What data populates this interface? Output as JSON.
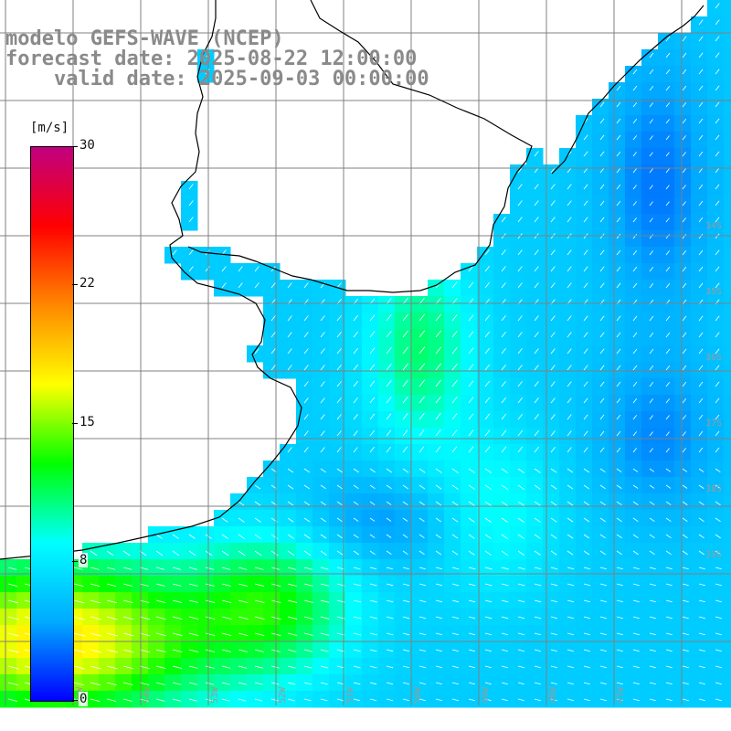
{
  "header": {
    "line1": "modelo GEFS-WAVE (NCEP)",
    "line2": "forecast date: 2025-08-22 12:00:00",
    "line3": "    valid date: 2025-09-03 00:00:00"
  },
  "colorbar": {
    "unit": "[m/s]",
    "ticks": [
      "30",
      "22",
      "15",
      "8",
      "0"
    ],
    "min": 0,
    "max": 30,
    "colors": [
      "#0000ff",
      "#00aaff",
      "#00ffff",
      "#00ff00",
      "#ffff00",
      "#ff8800",
      "#ff0000",
      "#c00080"
    ]
  },
  "map": {
    "land_color": "#ffffff",
    "grid_color": "#808080",
    "coastline_color": "#000000",
    "lat_labels": [
      "34S",
      "35S",
      "36S",
      "37S",
      "38S",
      "39S"
    ],
    "lon_labels": [
      "55W",
      "54W",
      "53W",
      "52W",
      "51W",
      "50W",
      "49W",
      "48W",
      "47W"
    ],
    "label_color": "#9a9a9a"
  }
}
